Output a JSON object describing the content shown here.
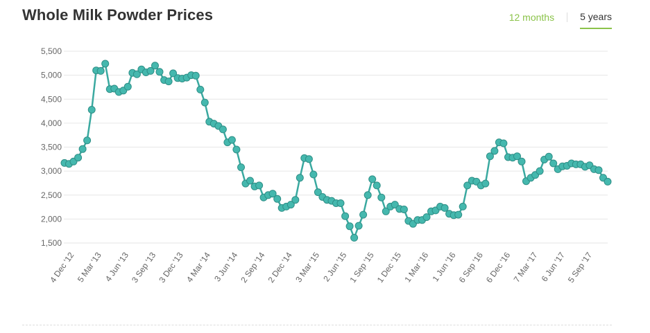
{
  "header": {
    "title": "Whole Milk Powder Prices",
    "tabs": [
      {
        "label": "12 months",
        "active": false
      },
      {
        "label": "5 years",
        "active": true
      }
    ]
  },
  "colors": {
    "line": "#3aa9a0",
    "marker_fill": "#45b8ae",
    "marker_stroke": "#2f8f87",
    "grid": "#e6e6e6",
    "accent": "#8bc34a"
  },
  "chart_data": {
    "type": "line",
    "title": "Whole Milk Powder Prices",
    "xlabel": "",
    "ylabel": "",
    "ylim": [
      1500,
      5500
    ],
    "grid": true,
    "yticks": [
      1500,
      2000,
      2500,
      3000,
      3500,
      4000,
      4500,
      5000,
      5500
    ],
    "ytick_labels": [
      "1,500",
      "2,000",
      "2,500",
      "3,000",
      "3,500",
      "4,000",
      "4,500",
      "5,000",
      "5,500"
    ],
    "xtick_labels": [
      "4 Dec '12",
      "5 Mar '13",
      "4 Jun '13",
      "3 Sep '13",
      "3 Dec '13",
      "4 Mar '14",
      "3 Jun '14",
      "2 Sep '14",
      "2 Dec '14",
      "3 Mar '15",
      "2 Jun '15",
      "1 Sep '15",
      "1 Dec '15",
      "1 Mar '16",
      "1 Jun '16",
      "6 Sep '16",
      "6 Dec '16",
      "7 Mar '17",
      "6 Jun '17",
      "5 Sep '17"
    ],
    "series": [
      {
        "values": [
          3170,
          3150,
          3200,
          3280,
          3460,
          3640,
          4280,
          5100,
          5090,
          5240,
          4710,
          4720,
          4650,
          4680,
          4760,
          5050,
          5020,
          5120,
          5060,
          5090,
          5200,
          5070,
          4900,
          4870,
          5040,
          4940,
          4930,
          4950,
          5000,
          4990,
          4700,
          4430,
          4030,
          3990,
          3940,
          3870,
          3600,
          3650,
          3450,
          3080,
          2740,
          2800,
          2680,
          2700,
          2450,
          2500,
          2530,
          2420,
          2230,
          2260,
          2300,
          2400,
          2860,
          3270,
          3250,
          2930,
          2560,
          2460,
          2400,
          2380,
          2330,
          2330,
          2060,
          1850,
          1610,
          1860,
          2090,
          2500,
          2830,
          2700,
          2450,
          2160,
          2260,
          2300,
          2210,
          2200,
          1960,
          1900,
          1980,
          1980,
          2040,
          2160,
          2180,
          2260,
          2230,
          2110,
          2080,
          2090,
          2260,
          2700,
          2800,
          2780,
          2700,
          2740,
          3310,
          3420,
          3600,
          3580,
          3290,
          3280,
          3310,
          3200,
          2790,
          2860,
          2920,
          3000,
          3240,
          3300,
          3160,
          3040,
          3100,
          3110,
          3160,
          3140,
          3140,
          3090,
          3120,
          3040,
          3020,
          2860,
          2780
        ]
      }
    ]
  }
}
